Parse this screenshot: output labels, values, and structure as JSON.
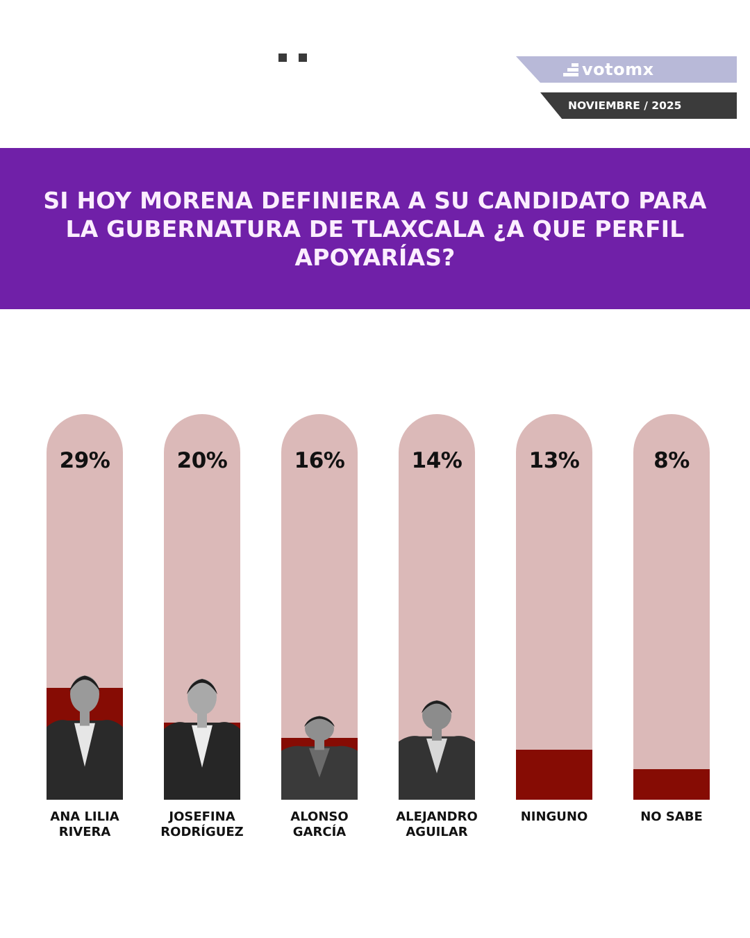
{
  "header": {
    "brand_name": "votomx",
    "date": "NOVIEMBRE / 2025",
    "brand_color": "#b8b9d8",
    "date_bg_color": "#3b3b3b"
  },
  "banner": {
    "title": "SI HOY MORENA DEFINIERA A SU CANDIDATO PARA LA GUBERNATURA DE TLAXCALA ¿A QUE PERFIL APOYARÍAS?",
    "bg_color": "#7020a8"
  },
  "chart_data": {
    "type": "bar",
    "title": "SI HOY MORENA DEFINIERA A SU CANDIDATO PARA LA GUBERNATURA DE TLAXCALA ¿A QUE PERFIL APOYARÍAS?",
    "categories": [
      "ANA LILIA RIVERA",
      "JOSEFINA RODRÍGUEZ",
      "ALONSO GARCÍA",
      "ALEJANDRO AGUILAR",
      "NINGUNO",
      "NO SABE"
    ],
    "values": [
      29,
      20,
      16,
      14,
      13,
      8
    ],
    "value_labels": [
      "29%",
      "20%",
      "16%",
      "14%",
      "13%",
      "8%"
    ],
    "unit": "%",
    "xlabel": "",
    "ylabel": "",
    "ylim": [
      0,
      100
    ],
    "grid": false,
    "legend": "none",
    "colors": {
      "fill": "#860c04",
      "track": "#dbb9b8"
    }
  },
  "bars": [
    {
      "label_line1": "ANA LILIA",
      "label_line2": "RIVERA",
      "pct": "29%",
      "has_photo": true
    },
    {
      "label_line1": "JOSEFINA",
      "label_line2": "RODRÍGUEZ",
      "pct": "20%",
      "has_photo": true
    },
    {
      "label_line1": "ALONSO",
      "label_line2": "GARCÍA",
      "pct": "16%",
      "has_photo": true
    },
    {
      "label_line1": "ALEJANDRO",
      "label_line2": "AGUILAR",
      "pct": "14%",
      "has_photo": true
    },
    {
      "label_line1": "NINGUNO",
      "label_line2": "",
      "pct": "13%",
      "has_photo": false
    },
    {
      "label_line1": "NO SABE",
      "label_line2": "",
      "pct": "8%",
      "has_photo": false
    }
  ]
}
